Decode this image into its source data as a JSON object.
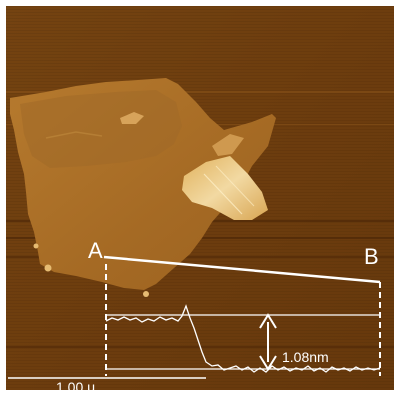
{
  "image": {
    "colormap": [
      "#3a1a04",
      "#6e3d0f",
      "#9b6220",
      "#c98f3c",
      "#f2d9a2"
    ],
    "line_color": "#ffffff"
  },
  "labels": {
    "point_a": "A",
    "point_b": "B",
    "height": "1.08nm",
    "scale_bar": "1.00 μ"
  },
  "profile": {
    "step_height_nm": 1.08
  }
}
